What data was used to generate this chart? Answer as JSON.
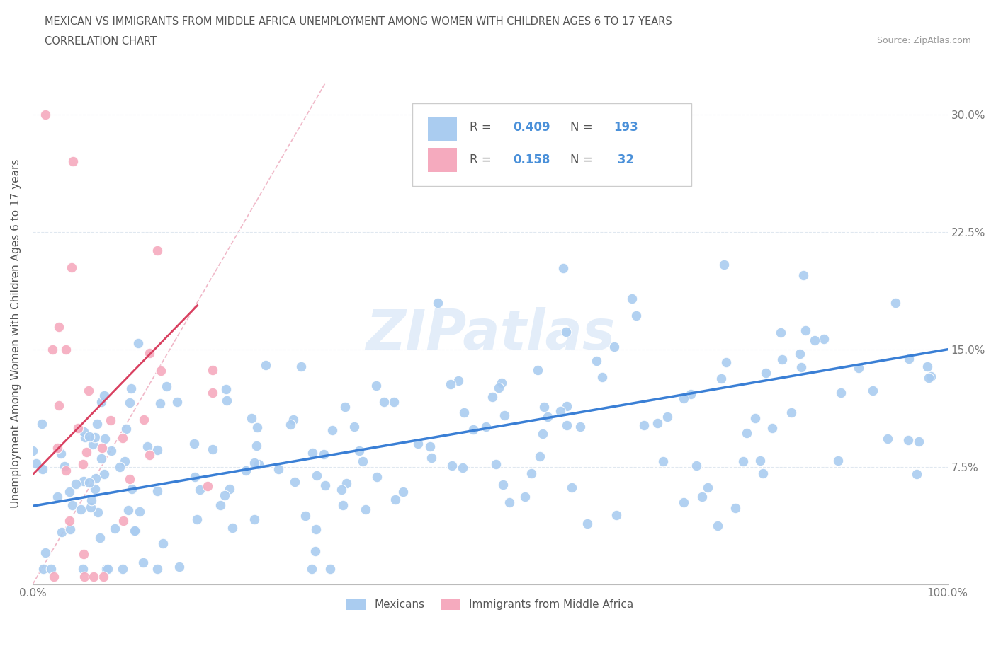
{
  "title_line1": "MEXICAN VS IMMIGRANTS FROM MIDDLE AFRICA UNEMPLOYMENT AMONG WOMEN WITH CHILDREN AGES 6 TO 17 YEARS",
  "title_line2": "CORRELATION CHART",
  "source": "Source: ZipAtlas.com",
  "ylabel": "Unemployment Among Women with Children Ages 6 to 17 years",
  "xlim": [
    0,
    1.0
  ],
  "ylim": [
    0,
    0.32
  ],
  "x_ticks": [
    0,
    0.1,
    0.2,
    0.3,
    0.4,
    0.5,
    0.6,
    0.7,
    0.8,
    0.9,
    1.0
  ],
  "x_tick_labels": [
    "0.0%",
    "",
    "",
    "",
    "",
    "",
    "",
    "",
    "",
    "",
    "100.0%"
  ],
  "y_ticks": [
    0,
    0.075,
    0.15,
    0.225,
    0.3
  ],
  "y_tick_labels": [
    "",
    "7.5%",
    "15.0%",
    "22.5%",
    "30.0%"
  ],
  "blue_R": 0.409,
  "blue_N": 193,
  "pink_R": 0.158,
  "pink_N": 32,
  "blue_color": "#aaccf0",
  "pink_color": "#f5aabe",
  "blue_line_color": "#3a7fd5",
  "pink_line_color": "#d94060",
  "watermark": "ZIPatlas",
  "legend_blue_label": "Mexicans",
  "legend_pink_label": "Immigrants from Middle Africa",
  "ref_line_color": "#d0d0d0",
  "grid_color": "#e0e8f0",
  "stat_text_color": "#4a90d9"
}
